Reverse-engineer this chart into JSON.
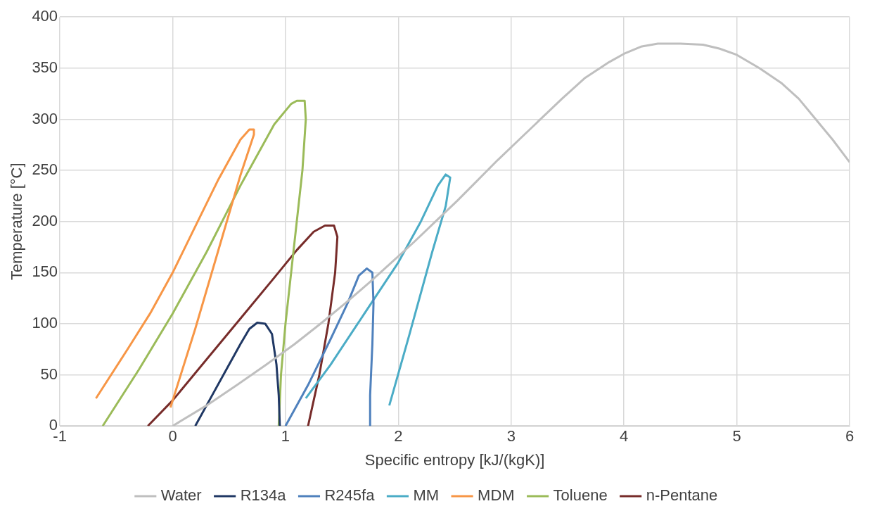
{
  "chart_data": {
    "type": "line",
    "xlabel": "Specific entropy [kJ/(kgK)]",
    "ylabel": "Temperature [°C]",
    "xlim": [
      -1,
      6
    ],
    "xticks": [
      -1,
      0,
      1,
      2,
      3,
      4,
      5,
      6
    ],
    "ylim": [
      0,
      400
    ],
    "yticks": [
      0,
      50,
      100,
      150,
      200,
      250,
      300,
      350,
      400
    ],
    "grid": true,
    "legend": "bottom",
    "marker": "none",
    "series": [
      {
        "name": "Water",
        "color": "#bfbfbf",
        "x": [
          0,
          0.3,
          0.57,
          0.83,
          1.08,
          1.31,
          1.53,
          1.74,
          1.94,
          2.14,
          2.33,
          2.52,
          2.7,
          2.88,
          3.07,
          3.26,
          3.45,
          3.65,
          3.87,
          4.0,
          4.15,
          4.3,
          4.5,
          4.7,
          4.85,
          5.0,
          5.2,
          5.4,
          5.55,
          5.7,
          5.85,
          6.0
        ],
        "values": [
          0,
          20,
          40,
          60,
          80,
          100,
          120,
          140,
          160,
          180,
          200,
          220,
          240,
          260,
          280,
          300,
          320,
          340,
          356,
          364,
          371,
          374,
          374,
          373,
          369,
          363,
          350,
          335,
          320,
          300,
          280,
          258
        ]
      },
      {
        "name": "R134a",
        "color": "#203864",
        "x": [
          0.2,
          0.35,
          0.5,
          0.6,
          0.68,
          0.75,
          0.82,
          0.88,
          0.92,
          0.94,
          0.95
        ],
        "values": [
          0,
          30,
          60,
          80,
          95,
          101,
          100,
          90,
          60,
          30,
          0
        ]
      },
      {
        "name": "R245fa",
        "color": "#4f81bd",
        "x": [
          1.0,
          1.2,
          1.4,
          1.55,
          1.65,
          1.72,
          1.77,
          1.78,
          1.77,
          1.75,
          1.75
        ],
        "values": [
          0,
          40,
          85,
          120,
          147,
          154,
          150,
          120,
          80,
          30,
          0
        ]
      },
      {
        "name": "MM",
        "color": "#4bacc6",
        "x": [
          1.18,
          1.4,
          1.7,
          2.0,
          2.2,
          2.35,
          2.42,
          2.46,
          2.42,
          2.3,
          2.1,
          1.92
        ],
        "values": [
          27,
          60,
          110,
          160,
          200,
          235,
          246,
          243,
          215,
          170,
          90,
          20
        ]
      },
      {
        "name": "MDM",
        "color": "#f79646",
        "x": [
          -0.68,
          -0.4,
          -0.2,
          0,
          0.2,
          0.4,
          0.6,
          0.68,
          0.72,
          0.72,
          0.6,
          0.4,
          0.2,
          0,
          -0.02
        ],
        "values": [
          27,
          75,
          110,
          150,
          195,
          240,
          280,
          290,
          290,
          285,
          245,
          170,
          95,
          25,
          18
        ]
      },
      {
        "name": "Toluene",
        "color": "#9bbb59",
        "x": [
          -0.62,
          -0.3,
          0,
          0.3,
          0.6,
          0.9,
          1.05,
          1.1,
          1.17,
          1.18,
          1.15,
          1.1,
          1.05,
          1.0,
          0.96,
          0.94
        ],
        "values": [
          0,
          55,
          110,
          170,
          235,
          295,
          315,
          318,
          318,
          300,
          250,
          200,
          150,
          100,
          50,
          0
        ]
      },
      {
        "name": "n-Pentane",
        "color": "#772c2a",
        "x": [
          -0.22,
          0,
          0.3,
          0.6,
          0.9,
          1.1,
          1.25,
          1.35,
          1.43,
          1.46,
          1.44,
          1.38,
          1.3,
          1.22,
          1.2
        ],
        "values": [
          0,
          25,
          65,
          105,
          145,
          172,
          190,
          196,
          196,
          185,
          150,
          100,
          50,
          10,
          0
        ]
      }
    ]
  }
}
